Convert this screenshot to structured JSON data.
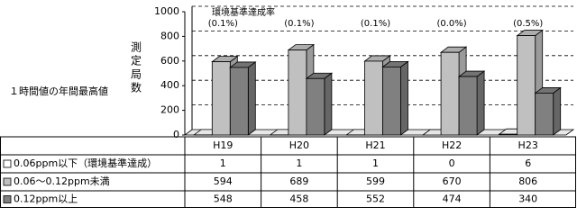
{
  "chart_data": {
    "type": "bar3d",
    "left_label": "１時間値の年間最高値",
    "y_label": "測定局数",
    "annotation_title": "環境基準達成率",
    "rate_labels": [
      "(0.1%)",
      "(0.1%)",
      "(0.1%)",
      "(0.0%)",
      "(0.5%)"
    ],
    "categories": [
      "H19",
      "H20",
      "H21",
      "H22",
      "H23"
    ],
    "series": [
      {
        "name": "0.06ppm以下（環境基準達成）",
        "color": "#ffffff",
        "values": [
          1,
          1,
          1,
          0,
          6
        ]
      },
      {
        "name": "0.06～0.12ppm未満",
        "color": "#c0c0c0",
        "values": [
          594,
          689,
          599,
          670,
          806
        ]
      },
      {
        "name": "0.12ppm以上",
        "color": "#808080",
        "values": [
          548,
          458,
          552,
          474,
          340
        ]
      }
    ],
    "ylim": [
      0,
      1000
    ],
    "yticks": [
      0,
      200,
      400,
      600,
      800,
      1000
    ],
    "grid": true
  }
}
